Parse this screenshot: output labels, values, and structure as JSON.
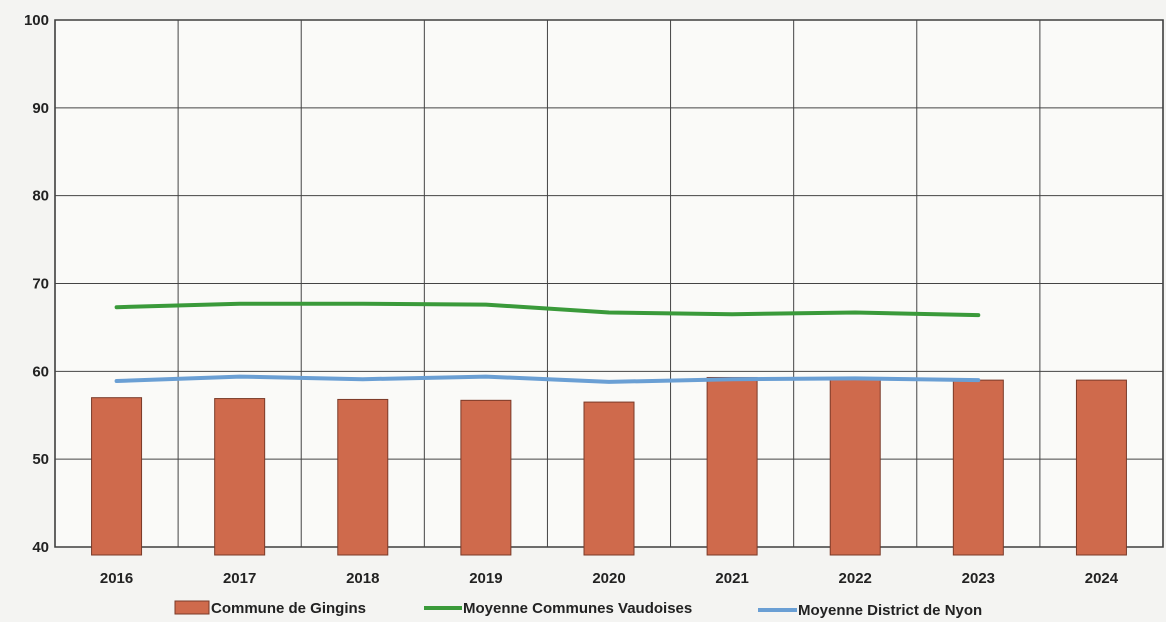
{
  "chart_data": {
    "type": "bar",
    "categories": [
      "2016",
      "2017",
      "2018",
      "2019",
      "2020",
      "2021",
      "2022",
      "2023",
      "2024"
    ],
    "ylim": [
      40,
      100
    ],
    "yticks": [
      40,
      50,
      60,
      70,
      80,
      90,
      100
    ],
    "grid": true,
    "legend_position": "bottom",
    "series": [
      {
        "name": "Commune de Gingins",
        "kind": "bar",
        "color": "#cf6a4c",
        "values": [
          57.0,
          56.9,
          56.8,
          56.7,
          56.5,
          59.3,
          59.2,
          59.0,
          59.0
        ]
      },
      {
        "name": "Moyenne Communes Vaudoises",
        "kind": "line",
        "color": "#3a9a3a",
        "values": [
          67.3,
          67.7,
          67.7,
          67.6,
          66.7,
          66.5,
          66.7,
          66.4,
          null
        ]
      },
      {
        "name": "Moyenne District de Nyon",
        "kind": "line",
        "color": "#6a9fd4",
        "values": [
          58.9,
          59.4,
          59.1,
          59.4,
          58.8,
          59.1,
          59.2,
          59.0,
          null
        ]
      }
    ]
  }
}
